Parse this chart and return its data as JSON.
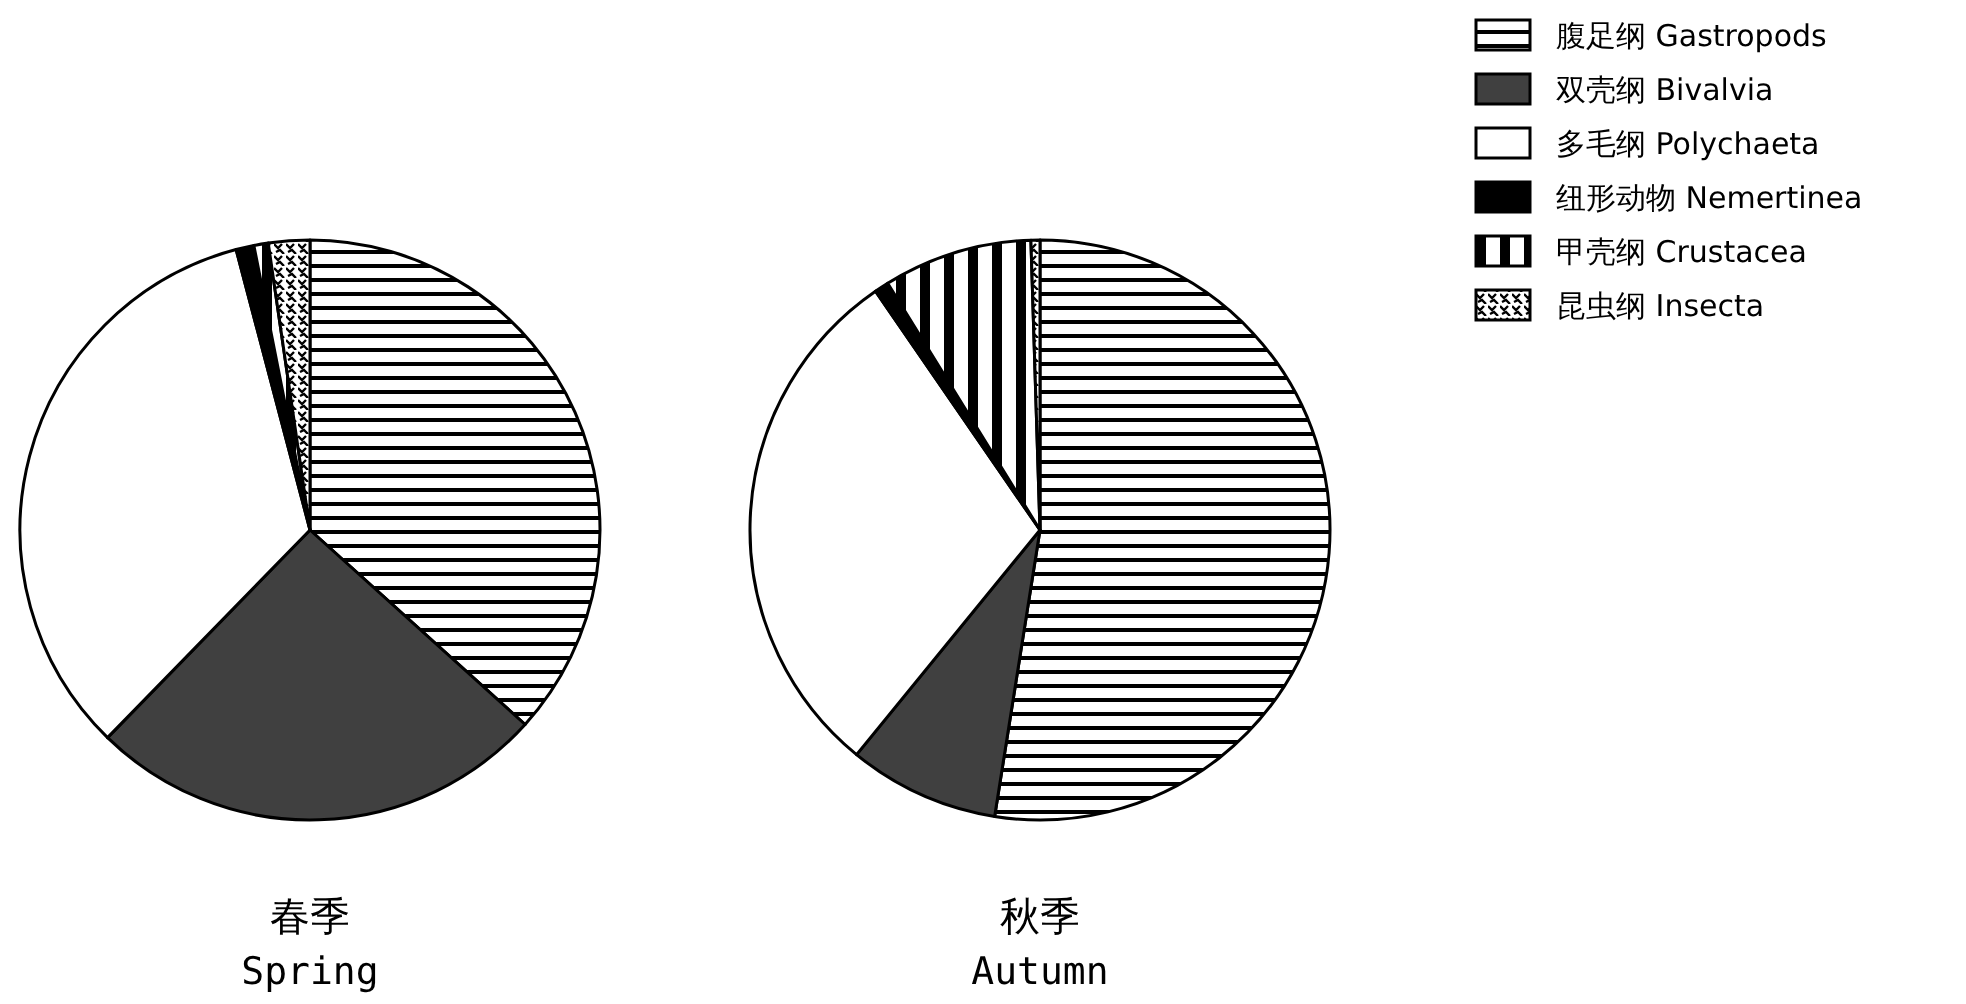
{
  "chart_data": [
    {
      "type": "pie",
      "title": "春季",
      "subtitle": "Spring",
      "categories": [
        "腹足纲 Gastropods",
        "双壳纲 Bivalvia",
        "多毛纲 Polychaeta",
        "纽形动物 Nemertinea",
        "甲壳纲 Crustacea",
        "昆虫纲 Insecta"
      ],
      "values": [
        36.7,
        25.6,
        33.6,
        1.0,
        0.8,
        2.3
      ],
      "colors": [
        "#000000",
        "#404040",
        "#ffffff",
        "#000000",
        "#000000",
        "#000000"
      ],
      "legend": "right"
    },
    {
      "type": "pie",
      "title": "秋季",
      "subtitle": "Autumn",
      "categories": [
        null,
        null,
        null,
        null,
        null,
        null
      ],
      "values": [
        52.5,
        8.4,
        29.5,
        0.8,
        8.3,
        0.5
      ],
      "colors": [
        "#000000",
        "#404040",
        "#ffffff",
        "#000000",
        "#000000",
        "#000000"
      ]
    }
  ]
}
